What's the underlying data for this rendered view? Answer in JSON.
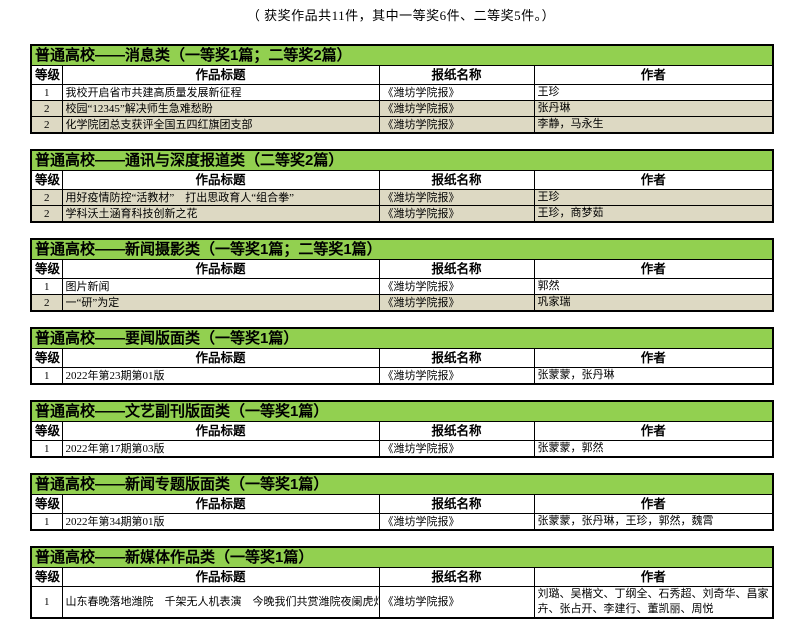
{
  "caption": "（ 获奖作品共11件，其中一等奖6件、二等奖5件。）",
  "colors": {
    "section_header_bg": "#92d050",
    "tier2_row_bg": "#ddd9c3",
    "border": "#000000"
  },
  "columns": {
    "grade": "等级",
    "work": "作品标题",
    "paper": "报纸名称",
    "author": "作者"
  },
  "sections": [
    {
      "title": "普通高校——消息类（一等奖1篇；二等奖2篇）",
      "rows": [
        {
          "grade": "1",
          "work": "我校开启省市共建高质量发展新征程",
          "paper": "《潍坊学院报》",
          "authors": "王珍"
        },
        {
          "grade": "2",
          "work": "校园“12345”解决师生急难愁盼",
          "paper": "《潍坊学院报》",
          "authors": "张丹琳"
        },
        {
          "grade": "2",
          "work": "化学院团总支获评全国五四红旗团支部",
          "paper": "《潍坊学院报》",
          "authors": "李静，马永生"
        }
      ]
    },
    {
      "title": "普通高校——通讯与深度报道类（二等奖2篇）",
      "rows": [
        {
          "grade": "2",
          "work": "用好疫情防控“活教材”　打出思政育人“组合拳”",
          "paper": "《潍坊学院报》",
          "authors": "王珍"
        },
        {
          "grade": "2",
          "work": "学科沃土涵育科技创新之花",
          "paper": "《潍坊学院报》",
          "authors": "王珍，商梦茹"
        }
      ]
    },
    {
      "title": "普通高校——新闻摄影类（一等奖1篇；二等奖1篇）",
      "rows": [
        {
          "grade": "1",
          "work": "图片新闻",
          "paper": "《潍坊学院报》",
          "authors": "郭然"
        },
        {
          "grade": "2",
          "work": "一“研”为定",
          "paper": "《潍坊学院报》",
          "authors": "巩家瑞"
        }
      ]
    },
    {
      "title": "普通高校——要闻版面类（一等奖1篇）",
      "rows": [
        {
          "grade": "1",
          "work": "2022年第23期第01版",
          "paper": "《潍坊学院报》",
          "authors": "张蒙蒙，张丹琳"
        }
      ]
    },
    {
      "title": "普通高校——文艺副刊版面类（一等奖1篇）",
      "rows": [
        {
          "grade": "1",
          "work": "2022年第17期第03版",
          "paper": "《潍坊学院报》",
          "authors": "张蒙蒙，郭然"
        }
      ]
    },
    {
      "title": "普通高校——新闻专题版面类（一等奖1篇）",
      "rows": [
        {
          "grade": "1",
          "work": "2022年第34期第01版",
          "paper": "《潍坊学院报》",
          "authors": "张蒙蒙，张丹琳，王珍，郭然，魏霄"
        }
      ]
    },
    {
      "title": "普通高校——新媒体作品类（一等奖1篇）",
      "rows": [
        {
          "grade": "1",
          "work": "山东春晚落地潍院　千架无人机表演　今晚我们共赏潍院夜阑虎灯势",
          "paper": "《潍坊学院报》",
          "authors": "刘璐、吴楷文、丁纲全、石秀超、刘奇华、昌家卉、张占开、李建行、董凯丽、周悦"
        }
      ]
    }
  ]
}
